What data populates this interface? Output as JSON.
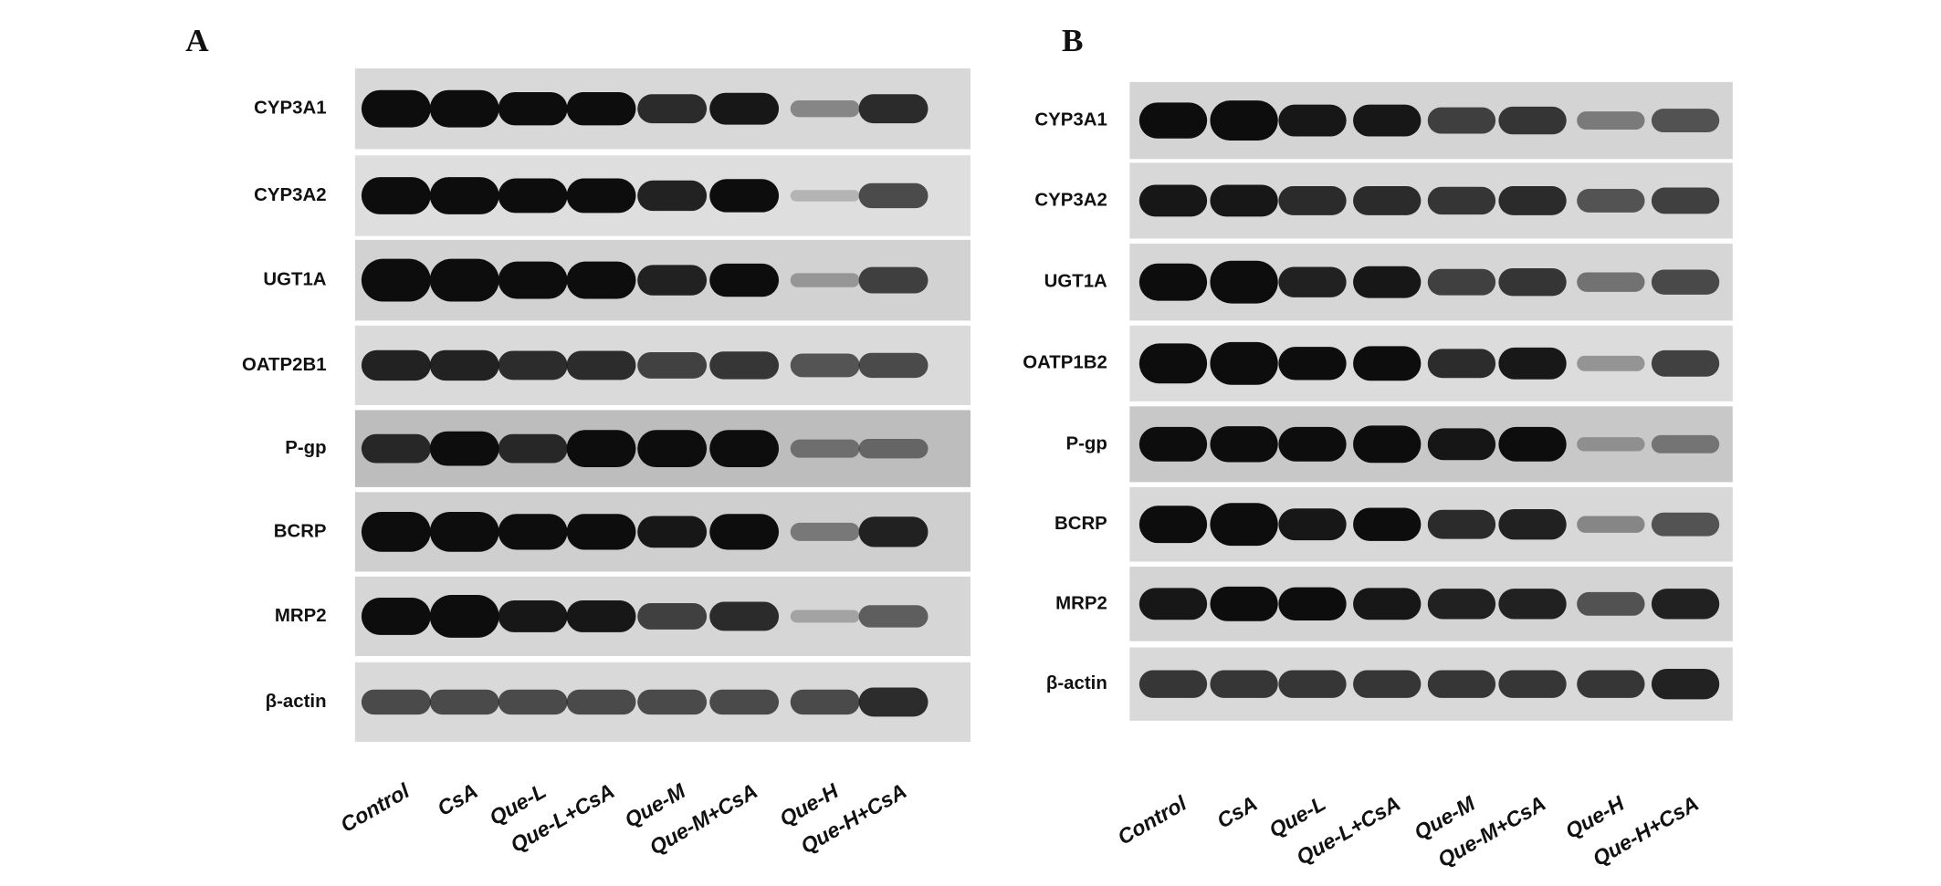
{
  "panels": [
    {
      "label": "A",
      "rows": [
        "CYP3A1",
        "CYP3A2",
        "UGT1A",
        "OATP2B1",
        "P-gp",
        "BCRP",
        "MRP2",
        "β-actin"
      ],
      "lanes": [
        "Control",
        "CsA",
        "Que-L",
        "Que-L+CsA",
        "Que-M",
        "Que-M+CsA",
        "Que-H",
        "Que-H+CsA"
      ]
    },
    {
      "label": "B",
      "rows": [
        "CYP3A1",
        "CYP3A2",
        "UGT1A",
        "OATP1B2",
        "P-gp",
        "BCRP",
        "MRP2",
        "β-actin"
      ],
      "lanes": [
        "Control",
        "CsA",
        "Que-L",
        "Que-L+CsA",
        "Que-M",
        "Que-M+CsA",
        "Que-H",
        "Que-H+CsA"
      ]
    }
  ]
}
